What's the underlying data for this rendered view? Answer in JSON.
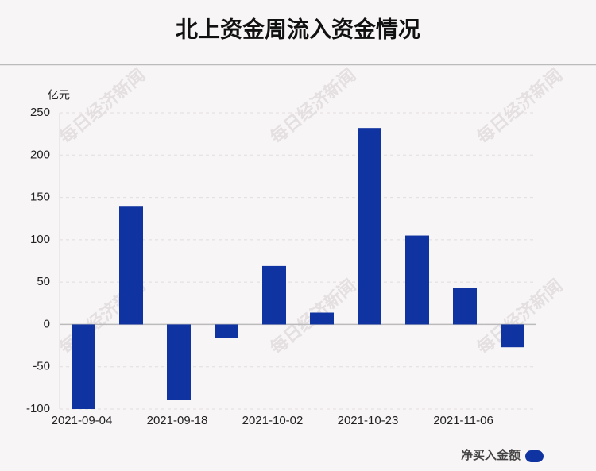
{
  "chart_data": {
    "type": "bar",
    "title": "北上资金周流入资金情况",
    "y_unit": "亿元",
    "watermark": "每日经济新闻",
    "categories": [
      "2021-09-04",
      null,
      "2021-09-18",
      null,
      "2021-10-02",
      null,
      "2021-10-23",
      null,
      "2021-11-06",
      null
    ],
    "series": [
      {
        "name": "净买入金额",
        "color": "#0f33a0",
        "values": [
          -100,
          140,
          -89,
          -16,
          69,
          14,
          232,
          105,
          43,
          -27
        ]
      }
    ],
    "ylim": [
      -100,
      250
    ],
    "yticks": [
      -100,
      -50,
      0,
      50,
      100,
      150,
      200,
      250
    ],
    "grid": true,
    "legend": "bottom-right"
  }
}
